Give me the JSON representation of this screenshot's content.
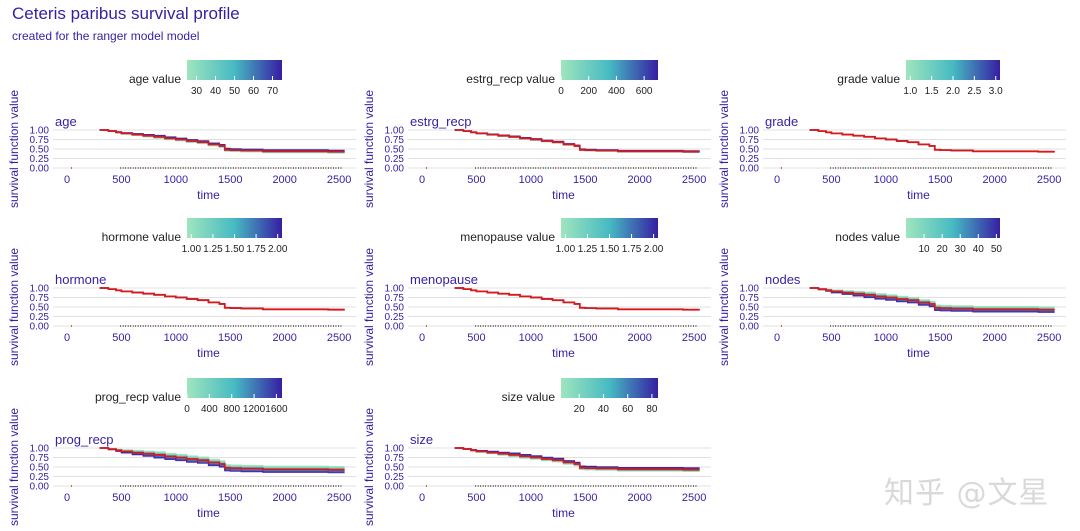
{
  "title": "Ceteris paribus survival profile",
  "subtitle": "created for the ranger model model",
  "watermark": "知乎 @文星",
  "colors": {
    "title": "#371ea3",
    "axis_text": "#371ea3",
    "grid": "#e0e0e0",
    "observed_line": "#d7191c",
    "gradient_low": "#9fe5bd",
    "gradient_mid": "#46bac2",
    "gradient_high": "#371ea3",
    "rug": "#555555",
    "rug_event": "#c0392b"
  },
  "chart_data": [
    {
      "type": "line",
      "panel_title": "age",
      "title": "age",
      "legend_title": "age value",
      "legend_ticks": [
        "30",
        "40",
        "50",
        "60",
        "70"
      ],
      "legend_range": [
        25,
        75
      ],
      "legend_tick_values": [
        30,
        40,
        50,
        60,
        70
      ],
      "xlabel": "time",
      "ylabel": "survival function value",
      "xlim": [
        0,
        2600
      ],
      "ylim": [
        0,
        1
      ],
      "x_ticks": [
        "0",
        "500",
        "1000",
        "1500",
        "2000",
        "2500"
      ],
      "y_ticks": [
        "0.00",
        "0.25",
        "0.50",
        "0.75",
        "1.00"
      ],
      "spread": 0.07
    },
    {
      "type": "line",
      "panel_title": "estrg_recp",
      "title": "estrg_recp",
      "legend_title": "estrg_recp value",
      "legend_ticks": [
        "0",
        "200",
        "400",
        "600"
      ],
      "legend_range": [
        0,
        700
      ],
      "legend_tick_values": [
        0,
        200,
        400,
        600
      ],
      "xlabel": "time",
      "ylabel": "survival function value",
      "xlim": [
        0,
        2600
      ],
      "ylim": [
        0,
        1
      ],
      "x_ticks": [
        "0",
        "500",
        "1000",
        "1500",
        "2000",
        "2500"
      ],
      "y_ticks": [
        "0.00",
        "0.25",
        "0.50",
        "0.75",
        "1.00"
      ],
      "spread": 0.04
    },
    {
      "type": "line",
      "panel_title": "grade",
      "title": "grade",
      "legend_title": "grade value",
      "legend_ticks": [
        "1.0",
        "1.5",
        "2.0",
        "2.5",
        "3.0"
      ],
      "legend_range": [
        0.9,
        3.1
      ],
      "legend_tick_values": [
        1.0,
        1.5,
        2.0,
        2.5,
        3.0
      ],
      "xlabel": "time",
      "ylabel": "survival function value",
      "xlim": [
        0,
        2600
      ],
      "ylim": [
        0,
        1
      ],
      "x_ticks": [
        "0",
        "500",
        "1000",
        "1500",
        "2000",
        "2500"
      ],
      "y_ticks": [
        "0.00",
        "0.25",
        "0.50",
        "0.75",
        "1.00"
      ],
      "spread": 0.005
    },
    {
      "type": "line",
      "panel_title": "hormone",
      "title": "hormone",
      "legend_title": "hormone value",
      "legend_ticks": [
        "1.00",
        "1.25",
        "1.50",
        "1.75",
        "2.00"
      ],
      "legend_range": [
        0.95,
        2.05
      ],
      "legend_tick_values": [
        1.0,
        1.25,
        1.5,
        1.75,
        2.0
      ],
      "xlabel": "time",
      "ylabel": "survival function value",
      "xlim": [
        0,
        2600
      ],
      "ylim": [
        0,
        1
      ],
      "x_ticks": [
        "0",
        "500",
        "1000",
        "1500",
        "2000",
        "2500"
      ],
      "y_ticks": [
        "0.00",
        "0.25",
        "0.50",
        "0.75",
        "1.00"
      ],
      "spread": 0.01
    },
    {
      "type": "line",
      "panel_title": "menopause",
      "title": "menopause",
      "legend_title": "menopause value",
      "legend_ticks": [
        "1.00",
        "1.25",
        "1.50",
        "1.75",
        "2.00"
      ],
      "legend_range": [
        0.95,
        2.05
      ],
      "legend_tick_values": [
        1.0,
        1.25,
        1.5,
        1.75,
        2.0
      ],
      "xlabel": "time",
      "ylabel": "survival function value",
      "xlim": [
        0,
        2600
      ],
      "ylim": [
        0,
        1
      ],
      "x_ticks": [
        "0",
        "500",
        "1000",
        "1500",
        "2000",
        "2500"
      ],
      "y_ticks": [
        "0.00",
        "0.25",
        "0.50",
        "0.75",
        "1.00"
      ],
      "spread": 0.005
    },
    {
      "type": "line",
      "panel_title": "nodes",
      "title": "nodes",
      "legend_title": "nodes value",
      "legend_ticks": [
        "10",
        "20",
        "30",
        "40",
        "50"
      ],
      "legend_range": [
        0,
        52
      ],
      "legend_tick_values": [
        10,
        20,
        30,
        40,
        50
      ],
      "xlabel": "time",
      "ylabel": "survival function value",
      "xlim": [
        0,
        2600
      ],
      "ylim": [
        0,
        1
      ],
      "x_ticks": [
        "0",
        "500",
        "1000",
        "1500",
        "2000",
        "2500"
      ],
      "y_ticks": [
        "0.00",
        "0.25",
        "0.50",
        "0.75",
        "1.00"
      ],
      "spread": -0.14
    },
    {
      "type": "line",
      "panel_title": "prog_recp",
      "title": "prog_recp",
      "legend_title": "prog_recp value",
      "legend_ticks": [
        "0",
        "400",
        "800",
        "1200",
        "1600"
      ],
      "legend_range": [
        0,
        1700
      ],
      "legend_tick_values": [
        0,
        400,
        800,
        1200,
        1600
      ],
      "xlabel": "time",
      "ylabel": "survival function value",
      "xlim": [
        0,
        2600
      ],
      "ylim": [
        0,
        1
      ],
      "x_ticks": [
        "0",
        "500",
        "1000",
        "1500",
        "2000",
        "2500"
      ],
      "y_ticks": [
        "0.00",
        "0.25",
        "0.50",
        "0.75",
        "1.00"
      ],
      "spread": -0.16
    },
    {
      "type": "line",
      "panel_title": "size",
      "title": "size",
      "legend_title": "size value",
      "legend_ticks": [
        "20",
        "40",
        "60",
        "80"
      ],
      "legend_range": [
        5,
        85
      ],
      "legend_tick_values": [
        20,
        40,
        60,
        80
      ],
      "xlabel": "time",
      "ylabel": "survival function value",
      "xlim": [
        0,
        2600
      ],
      "ylim": [
        0,
        1
      ],
      "x_ticks": [
        "0",
        "500",
        "1000",
        "1500",
        "2000",
        "2500"
      ],
      "y_ticks": [
        "0.00",
        "0.25",
        "0.50",
        "0.75",
        "1.00"
      ],
      "spread": 0.09
    }
  ],
  "survival_curve": {
    "time": [
      300,
      380,
      450,
      500,
      600,
      700,
      800,
      900,
      1000,
      1100,
      1200,
      1300,
      1400,
      1450,
      1500,
      1600,
      1800,
      2000,
      2200,
      2400,
      2550
    ],
    "survival": [
      1.0,
      0.97,
      0.94,
      0.91,
      0.88,
      0.85,
      0.82,
      0.78,
      0.75,
      0.71,
      0.68,
      0.62,
      0.58,
      0.48,
      0.47,
      0.46,
      0.44,
      0.44,
      0.44,
      0.43,
      0.43
    ]
  }
}
